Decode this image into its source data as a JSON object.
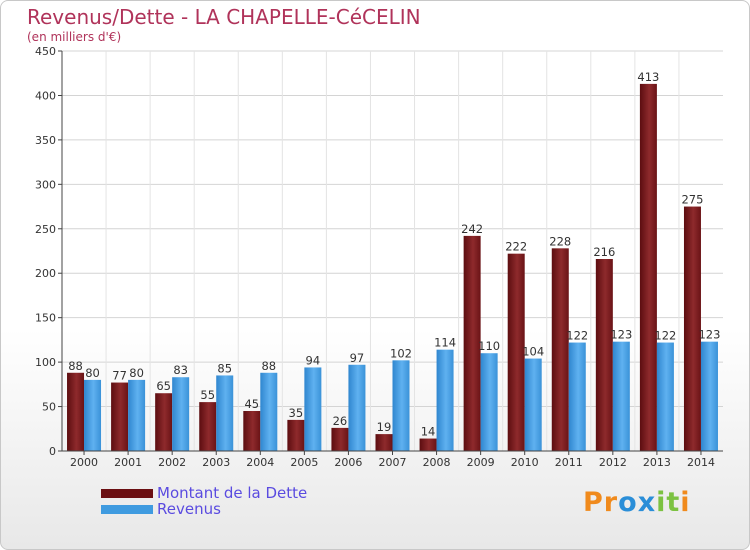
{
  "header": {
    "title": "Revenus/Dette - LA CHAPELLE-CéCELIN",
    "subtitle": "(en milliers d'€)"
  },
  "colors": {
    "debt": "#7a1a1e",
    "revenue": "#3f9be0"
  },
  "legend": {
    "items": [
      {
        "label": "Montant de la Dette",
        "color": "#6b0f12"
      },
      {
        "label": "Revenus",
        "color": "#3f9be0"
      }
    ]
  },
  "logo": {
    "text": "Proxiti",
    "letters": [
      "P",
      "r",
      "o",
      "x",
      "i",
      "t",
      "i"
    ],
    "letter_colors": [
      "#f08a1c",
      "#f08a1c",
      "#2a8ed8",
      "#2a8ed8",
      "#7cc242",
      "#7cc242",
      "#f08a1c"
    ]
  },
  "chart_data": {
    "type": "bar",
    "title": "Revenus/Dette - LA CHAPELLE-CéCELIN",
    "subtitle": "(en milliers d'€)",
    "xlabel": "",
    "ylabel": "",
    "ylim": [
      0,
      450
    ],
    "yticks": [
      0,
      50,
      100,
      150,
      200,
      250,
      300,
      350,
      400,
      450
    ],
    "grid": true,
    "legend_position": "bottom-left",
    "categories": [
      "2000",
      "2001",
      "2002",
      "2003",
      "2004",
      "2005",
      "2006",
      "2007",
      "2008",
      "2009",
      "2010",
      "2011",
      "2012",
      "2013",
      "2014"
    ],
    "series": [
      {
        "name": "Montant de la Dette",
        "values": [
          88,
          77,
          65,
          55,
          45,
          35,
          26,
          19,
          14,
          242,
          222,
          228,
          216,
          413,
          275
        ]
      },
      {
        "name": "Revenus",
        "values": [
          80,
          80,
          83,
          85,
          88,
          94,
          97,
          102,
          114,
          110,
          104,
          122,
          123,
          122,
          123
        ]
      }
    ]
  }
}
